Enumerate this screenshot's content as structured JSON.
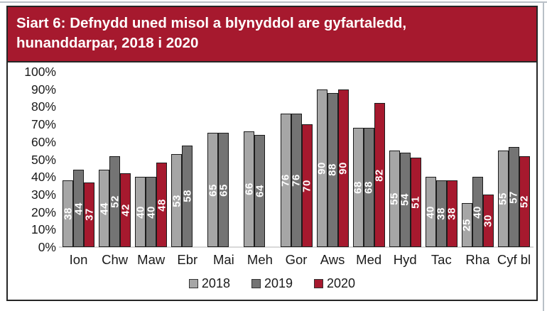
{
  "header": {
    "title_line1": "Siart 6: Defnydd uned misol a blynyddol are gyfartaledd,",
    "title_line2": "hunanddarpar, 2018 i 2020",
    "background": "#A6192E",
    "text_color": "#FFFFFF"
  },
  "chart_data": {
    "type": "bar",
    "title": "Siart 6: Defnydd uned misol a blynyddol are gyfartaledd, hunanddarpar, 2018 i 2020",
    "categories": [
      "Ion",
      "Chw",
      "Maw",
      "Ebr",
      "Mai",
      "Meh",
      "Gor",
      "Aws",
      "Med",
      "Hyd",
      "Tac",
      "Rha",
      "Cyf bl"
    ],
    "series": [
      {
        "name": "2018",
        "color": "#A6A6A6",
        "values": [
          38,
          44,
          40,
          53,
          65,
          66,
          76,
          90,
          68,
          55,
          40,
          25,
          55
        ]
      },
      {
        "name": "2019",
        "color": "#747474",
        "values": [
          44,
          52,
          40,
          58,
          65,
          64,
          76,
          88,
          68,
          54,
          38,
          40,
          57
        ]
      },
      {
        "name": "2020",
        "color": "#A6192E",
        "values": [
          37,
          42,
          48,
          null,
          null,
          null,
          70,
          90,
          82,
          51,
          38,
          30,
          52
        ]
      }
    ],
    "y_axis": {
      "min": 0,
      "max": 100,
      "step": 10,
      "tick_labels_top_to_bottom": [
        "100%",
        "90%",
        "80%",
        "70%",
        "60%",
        "50%",
        "40%",
        "30%",
        "20%",
        "10%",
        "0%"
      ]
    },
    "grid": false,
    "legend_position": "bottom",
    "data_labels": "value inside bar, rotated vertical, white bold"
  }
}
